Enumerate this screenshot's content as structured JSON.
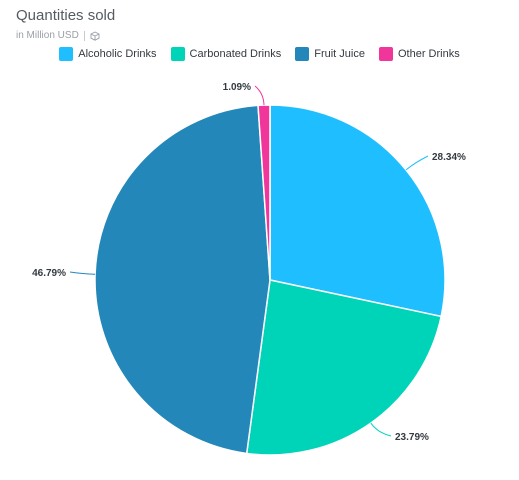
{
  "chart_data": {
    "type": "pie",
    "title": "Quantities sold",
    "subtitle": "in Million USD",
    "categories": [
      "Alcoholic Drinks",
      "Carbonated Drinks",
      "Fruit Juice",
      "Other Drinks"
    ],
    "values": [
      28.34,
      23.79,
      46.79,
      1.09
    ],
    "data_labels": [
      "28.34%",
      "23.79%",
      "46.79%",
      "1.09%"
    ],
    "colors": [
      "#1FBFFF",
      "#00D4B8",
      "#2487B9",
      "#F0359B"
    ],
    "legend_position": "top"
  }
}
